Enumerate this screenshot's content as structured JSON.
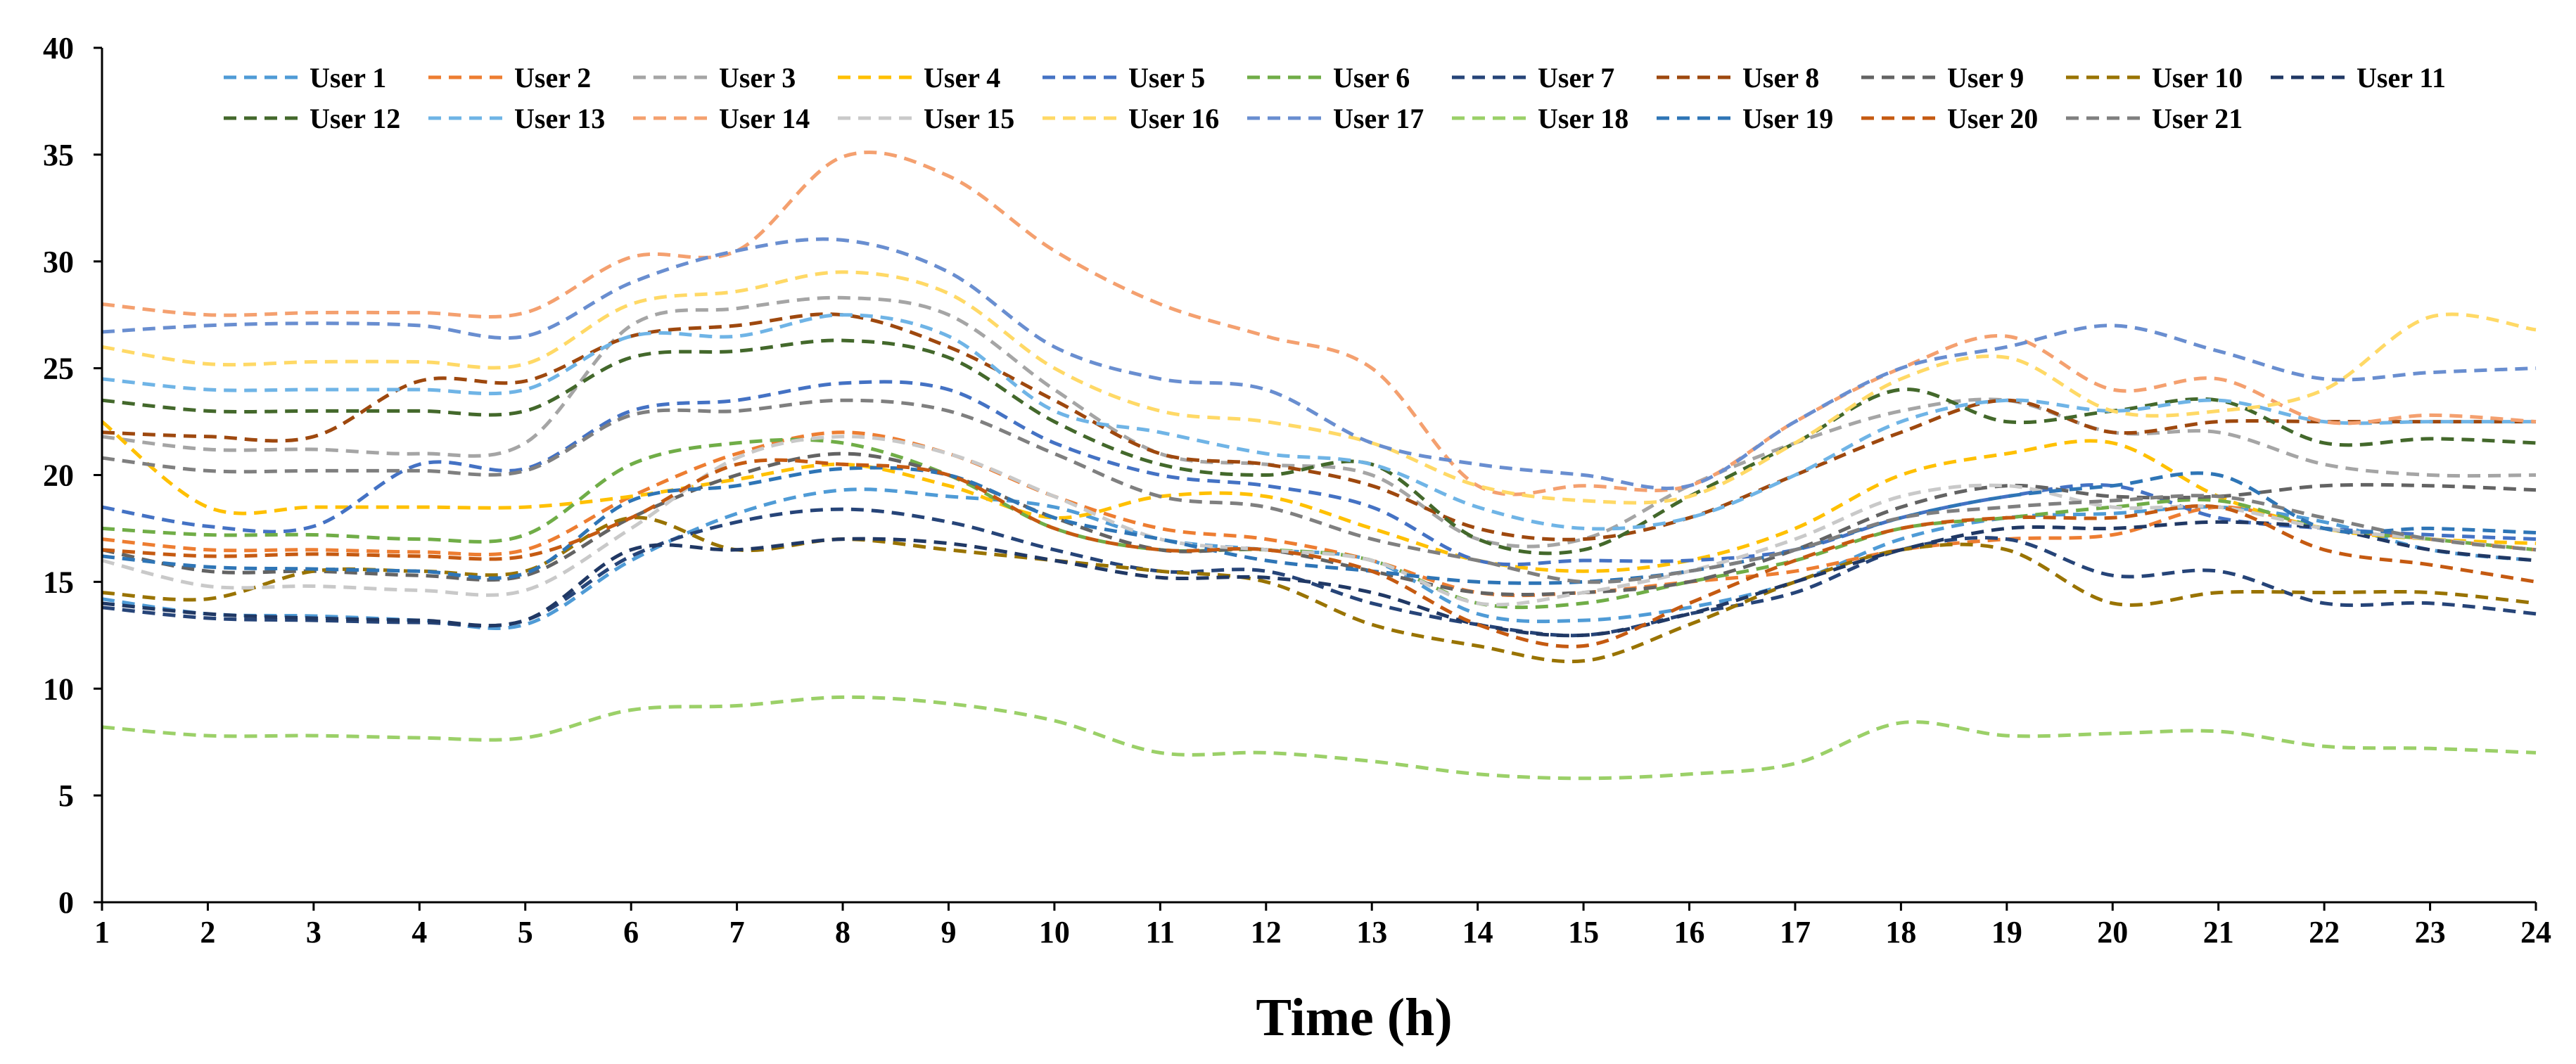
{
  "chart_data": {
    "type": "line",
    "title": "",
    "xlabel": "Time (h)",
    "ylabel": "",
    "ylim": [
      0,
      40
    ],
    "xlim": [
      1,
      24
    ],
    "yticks": [
      0,
      5,
      10,
      15,
      20,
      25,
      30,
      35,
      40
    ],
    "x": [
      1,
      2,
      3,
      4,
      5,
      6,
      7,
      8,
      9,
      10,
      11,
      12,
      13,
      14,
      15,
      16,
      17,
      18,
      19,
      20,
      21,
      22,
      23,
      24
    ],
    "grid": false,
    "line_style": "dashed",
    "legend_position": "top",
    "series": [
      {
        "name": "User 1",
        "color": "#4f9bd6",
        "values": [
          14.2,
          13.5,
          13.4,
          13.2,
          13.0,
          16.0,
          18.2,
          19.3,
          19.0,
          18.5,
          17.0,
          16.5,
          16.0,
          13.5,
          13.2,
          13.8,
          15.0,
          17.0,
          18.0,
          18.2,
          18.5,
          17.8,
          16.5,
          16.0
        ]
      },
      {
        "name": "User 2",
        "color": "#ed7d31",
        "values": [
          17.0,
          16.5,
          16.5,
          16.4,
          16.5,
          19.0,
          21.0,
          22.0,
          21.0,
          19.0,
          17.5,
          17.0,
          16.0,
          14.5,
          14.5,
          15.0,
          15.5,
          16.5,
          17.0,
          17.2,
          18.5,
          17.5,
          17.0,
          16.5
        ]
      },
      {
        "name": "User 3",
        "color": "#a5a5a5",
        "values": [
          21.8,
          21.2,
          21.2,
          21.0,
          21.5,
          27.0,
          27.8,
          28.3,
          27.5,
          24.0,
          21.0,
          20.5,
          20.0,
          17.0,
          17.0,
          19.5,
          21.5,
          23.0,
          23.5,
          22.0,
          22.0,
          20.5,
          20.0,
          20.0
        ]
      },
      {
        "name": "User 4",
        "color": "#ffc000",
        "values": [
          22.5,
          18.5,
          18.5,
          18.5,
          18.5,
          19.0,
          19.8,
          20.5,
          19.5,
          18.0,
          19.0,
          19.0,
          17.5,
          16.0,
          15.5,
          16.0,
          17.5,
          20.0,
          21.0,
          21.5,
          19.0,
          17.5,
          17.0,
          16.8
        ]
      },
      {
        "name": "User 5",
        "color": "#4472c4",
        "values": [
          18.5,
          17.6,
          17.6,
          20.5,
          20.3,
          23.0,
          23.5,
          24.3,
          24.0,
          21.5,
          20.0,
          19.5,
          18.5,
          16.0,
          16.0,
          16.0,
          16.5,
          18.0,
          19.0,
          19.5,
          18.0,
          17.5,
          17.2,
          17.0
        ]
      },
      {
        "name": "User 6",
        "color": "#70ad47",
        "values": [
          17.5,
          17.2,
          17.2,
          17.0,
          17.2,
          20.5,
          21.5,
          21.5,
          20.0,
          17.5,
          16.5,
          16.5,
          16.0,
          14.0,
          14.0,
          15.0,
          16.0,
          17.5,
          18.0,
          18.5,
          18.8,
          17.5,
          17.0,
          16.5
        ]
      },
      {
        "name": "User 7",
        "color": "#264478",
        "values": [
          13.8,
          13.3,
          13.2,
          13.1,
          13.2,
          16.2,
          17.8,
          18.4,
          17.8,
          16.5,
          15.5,
          15.5,
          14.0,
          13.0,
          12.5,
          13.5,
          14.5,
          16.5,
          17.0,
          15.3,
          15.5,
          14.0,
          14.0,
          13.5
        ]
      },
      {
        "name": "User 8",
        "color": "#9e480e",
        "values": [
          22.0,
          21.8,
          21.8,
          24.4,
          24.4,
          26.5,
          27.0,
          27.5,
          26.0,
          23.5,
          21.0,
          20.5,
          19.5,
          17.5,
          17.0,
          18.0,
          20.0,
          22.0,
          23.5,
          22.0,
          22.5,
          22.5,
          22.5,
          22.5
        ]
      },
      {
        "name": "User 9",
        "color": "#636363",
        "values": [
          16.5,
          15.5,
          15.5,
          15.3,
          15.3,
          18.0,
          20.0,
          21.0,
          20.0,
          18.0,
          16.5,
          16.5,
          15.5,
          14.5,
          14.5,
          15.0,
          16.5,
          18.5,
          19.5,
          19.0,
          19.0,
          19.5,
          19.5,
          19.3
        ]
      },
      {
        "name": "User 10",
        "color": "#997300",
        "values": [
          14.5,
          14.2,
          15.5,
          15.5,
          15.5,
          18.0,
          16.5,
          17.0,
          16.5,
          16.0,
          15.5,
          15.0,
          13.0,
          12.0,
          11.3,
          13.0,
          15.0,
          16.5,
          16.5,
          14.0,
          14.5,
          14.5,
          14.5,
          14.0
        ]
      },
      {
        "name": "User 11",
        "color": "#203864",
        "values": [
          14.0,
          13.5,
          13.3,
          13.2,
          13.2,
          16.5,
          16.5,
          17.0,
          16.8,
          16.0,
          15.2,
          15.2,
          14.5,
          13.0,
          12.5,
          13.5,
          15.0,
          16.5,
          17.5,
          17.5,
          17.8,
          17.5,
          16.5,
          16.0
        ]
      },
      {
        "name": "User 12",
        "color": "#43682b",
        "values": [
          23.5,
          23.0,
          23.0,
          23.0,
          23.0,
          25.5,
          25.8,
          26.3,
          25.5,
          22.5,
          20.5,
          20.0,
          20.5,
          17.0,
          16.5,
          19.0,
          21.5,
          24.0,
          22.5,
          23.0,
          23.5,
          21.5,
          21.7,
          21.5
        ]
      },
      {
        "name": "User 13",
        "color": "#6fb4e6",
        "values": [
          24.5,
          24.0,
          24.0,
          24.0,
          24.0,
          26.5,
          26.5,
          27.5,
          26.5,
          23.0,
          22.0,
          21.0,
          20.5,
          18.5,
          17.5,
          18.0,
          20.0,
          22.5,
          23.5,
          23.0,
          23.5,
          22.5,
          22.5,
          22.5
        ]
      },
      {
        "name": "User 14",
        "color": "#f4a06f",
        "values": [
          28.0,
          27.5,
          27.6,
          27.6,
          27.6,
          30.2,
          30.5,
          34.9,
          34.0,
          30.5,
          28.0,
          26.5,
          25.0,
          19.5,
          19.5,
          19.5,
          22.5,
          25.0,
          26.5,
          24.0,
          24.5,
          22.5,
          22.8,
          22.5
        ]
      },
      {
        "name": "User 15",
        "color": "#c9c9c9",
        "values": [
          16.0,
          14.8,
          14.8,
          14.6,
          14.6,
          17.5,
          20.8,
          21.8,
          21.0,
          19.0,
          17.0,
          16.5,
          16.0,
          14.0,
          14.5,
          15.5,
          17.0,
          19.0,
          19.5,
          18.5,
          18.5,
          17.5,
          17.0,
          16.5
        ]
      },
      {
        "name": "User 16",
        "color": "#ffd966",
        "values": [
          26.0,
          25.2,
          25.3,
          25.3,
          25.2,
          28.0,
          28.6,
          29.5,
          28.5,
          25.0,
          23.0,
          22.5,
          21.5,
          19.5,
          18.8,
          19.0,
          21.5,
          24.5,
          25.5,
          23.0,
          23.0,
          24.0,
          27.4,
          26.8
        ]
      },
      {
        "name": "User 17",
        "color": "#698ed0",
        "values": [
          26.7,
          27.0,
          27.1,
          27.0,
          26.5,
          29.0,
          30.5,
          31.0,
          29.5,
          26.0,
          24.5,
          24.0,
          21.5,
          20.5,
          20.0,
          19.5,
          22.5,
          25.0,
          26.0,
          27.0,
          25.8,
          24.5,
          24.8,
          25.0
        ]
      },
      {
        "name": "User 18",
        "color": "#9bd068",
        "values": [
          8.2,
          7.8,
          7.8,
          7.7,
          7.7,
          9.0,
          9.2,
          9.6,
          9.3,
          8.5,
          7.0,
          7.0,
          6.6,
          6.0,
          5.8,
          6.0,
          6.5,
          8.4,
          7.8,
          7.9,
          8.0,
          7.3,
          7.2,
          7.0
        ]
      },
      {
        "name": "User 19",
        "color": "#2e75b6",
        "values": [
          16.2,
          15.7,
          15.6,
          15.5,
          15.4,
          18.8,
          19.5,
          20.3,
          20.0,
          18.0,
          17.0,
          16.0,
          15.5,
          15.0,
          15.0,
          15.5,
          16.5,
          18.0,
          19.0,
          19.5,
          20.0,
          17.5,
          17.5,
          17.3
        ]
      },
      {
        "name": "User 20",
        "color": "#c55a11",
        "values": [
          16.5,
          16.2,
          16.3,
          16.2,
          16.2,
          18.0,
          20.5,
          20.5,
          20.0,
          17.5,
          16.5,
          16.5,
          15.5,
          13.0,
          12.0,
          14.0,
          16.0,
          17.5,
          18.0,
          18.0,
          18.5,
          16.5,
          15.8,
          15.0
        ]
      },
      {
        "name": "User 21",
        "color": "#7f7f7f",
        "values": [
          20.8,
          20.2,
          20.2,
          20.2,
          20.2,
          22.8,
          23.0,
          23.5,
          23.0,
          21.0,
          19.0,
          18.5,
          17.0,
          16.0,
          15.0,
          15.5,
          16.5,
          18.0,
          18.5,
          18.8,
          19.0,
          18.0,
          17.0,
          16.5
        ]
      }
    ]
  }
}
